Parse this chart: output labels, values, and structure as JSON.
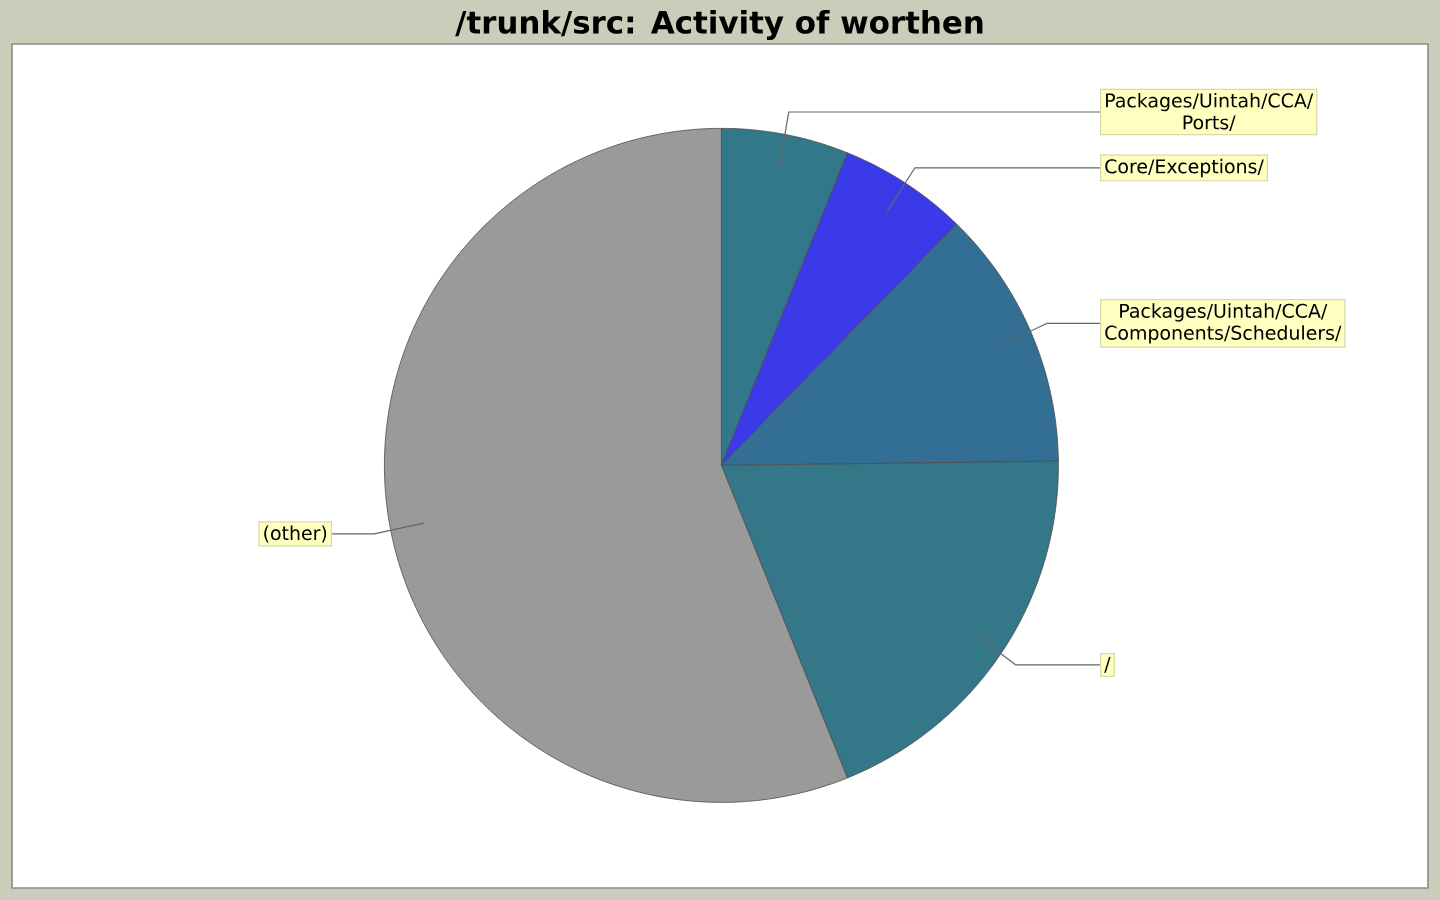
{
  "chart_data": {
    "type": "pie",
    "title": "/trunk/src: Activity of worthen",
    "categories": [
      "Packages/Uintah/CCA/Ports/",
      "Core/Exceptions/",
      "Packages/Uintah/CCA/Components/Schedulers/",
      "/",
      "(other)"
    ],
    "values": [
      6.1,
      6.2,
      12.5,
      19.1,
      56.1
    ],
    "colors": [
      "#33788a",
      "#3a3ae8",
      "#336f95",
      "#337788",
      "#9a9a9a"
    ]
  }
}
